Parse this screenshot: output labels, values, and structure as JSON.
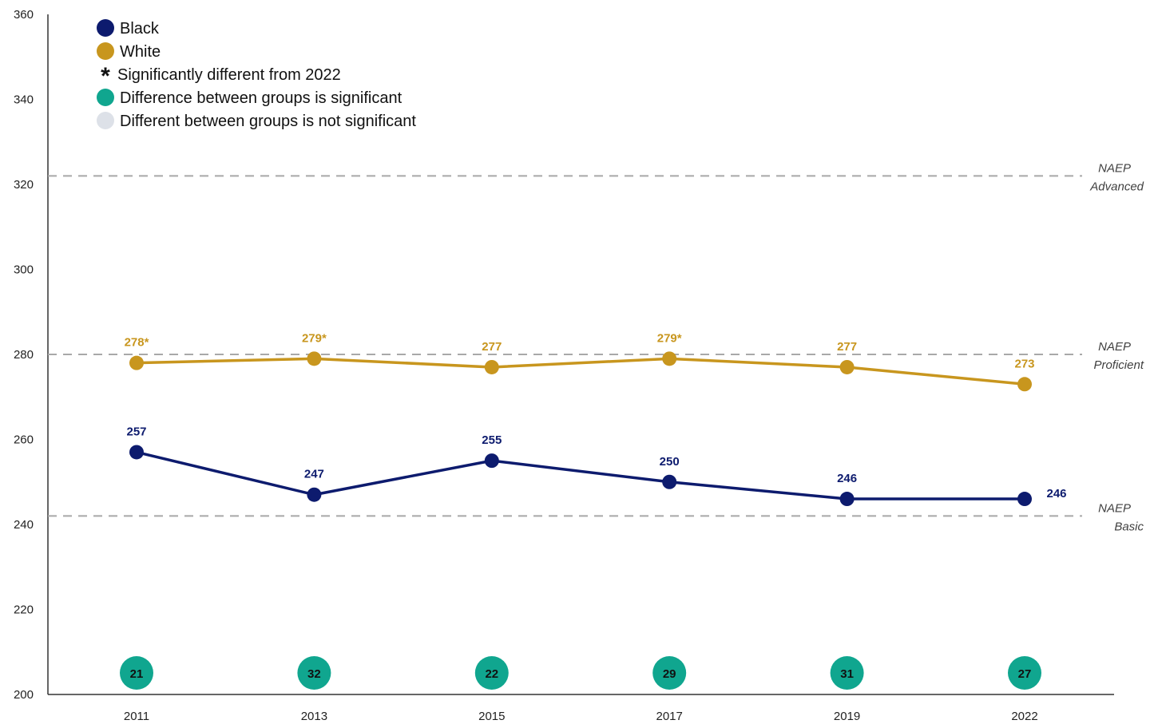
{
  "chart_data": {
    "type": "line",
    "x": [
      "2011",
      "2013",
      "2015",
      "2017",
      "2019",
      "2022"
    ],
    "ylim": [
      200,
      360
    ],
    "yticks": [
      "200",
      "220",
      "240",
      "260",
      "280",
      "300",
      "320",
      "340",
      "360"
    ],
    "series": [
      {
        "name": "Black",
        "color": "#0d1b6e",
        "values": [
          257,
          247,
          255,
          250,
          246,
          246
        ],
        "labels": [
          "257",
          "247",
          "255",
          "250",
          "246",
          "246"
        ]
      },
      {
        "name": "White",
        "color": "#c8961e",
        "values": [
          278,
          279,
          277,
          279,
          277,
          273
        ],
        "labels": [
          "278*",
          "279*",
          "277",
          "279*",
          "277",
          "273"
        ]
      }
    ],
    "reference_lines": [
      {
        "value": 322,
        "label_line1": "NAEP",
        "label_line2": "Advanced"
      },
      {
        "value": 280,
        "label_line1": "NAEP",
        "label_line2": "Proficient"
      },
      {
        "value": 242,
        "label_line1": "NAEP",
        "label_line2": "Basic"
      }
    ],
    "gaps": {
      "values": [
        "21",
        "32",
        "22",
        "29",
        "31",
        "27"
      ],
      "significant_color": "#10a68f",
      "not_significant_color": "#dde1e8"
    },
    "legend": {
      "position": "top-left",
      "items": [
        {
          "marker": "circle",
          "color": "#0d1b6e",
          "label": "Black"
        },
        {
          "marker": "circle",
          "color": "#c8961e",
          "label": "White"
        },
        {
          "marker": "asterisk",
          "symbol": "*",
          "label": "Significantly different from 2022"
        },
        {
          "marker": "circle",
          "color": "#10a68f",
          "label": "Difference between groups is significant"
        },
        {
          "marker": "circle",
          "color": "#dde1e8",
          "label": "Different between groups is not significant"
        }
      ]
    },
    "grid": false
  }
}
